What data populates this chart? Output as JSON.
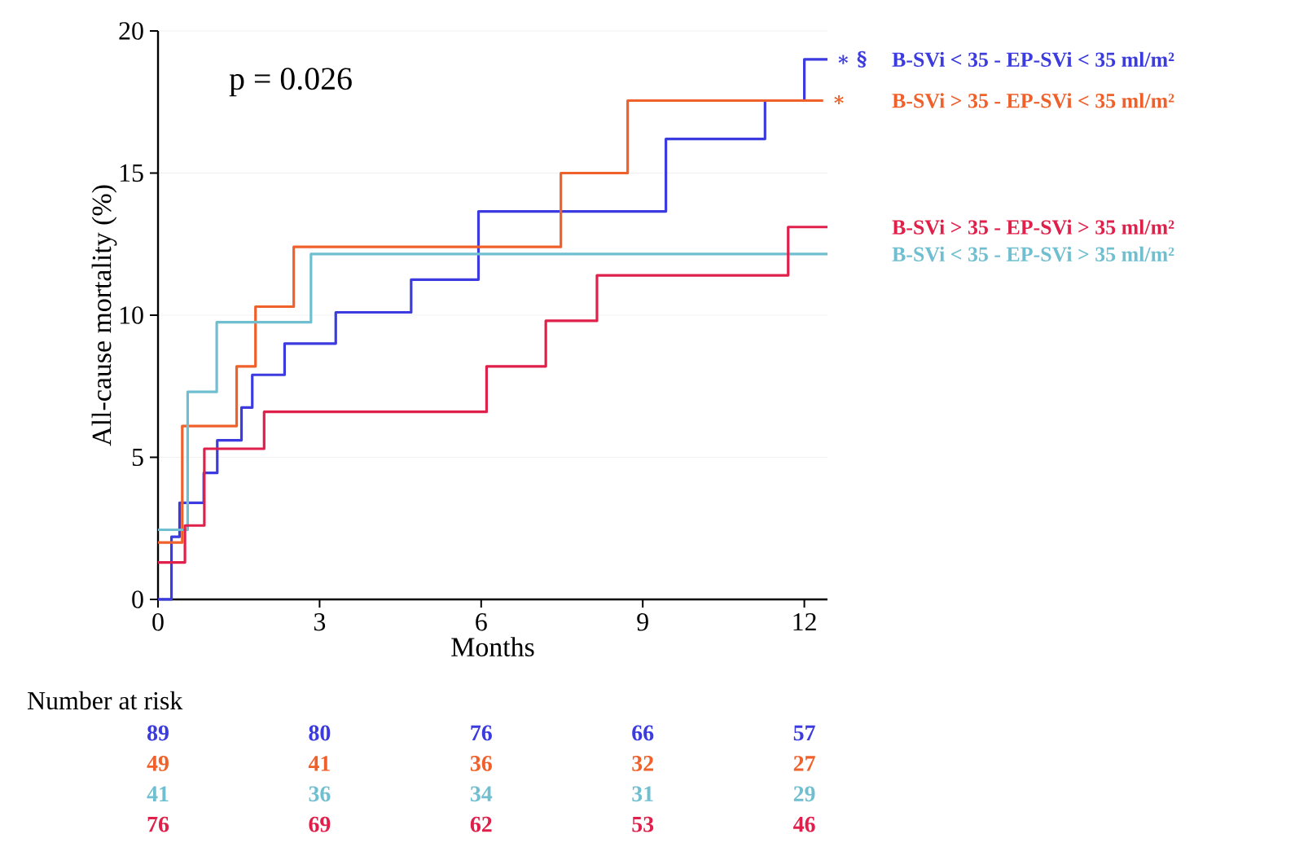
{
  "chart_data": {
    "type": "step",
    "xlabel": "Months",
    "ylabel": "All-cause mortality (%)",
    "xlim": [
      0,
      12.43
    ],
    "ylim": [
      0,
      20
    ],
    "xticks": [
      0,
      3,
      6,
      9,
      12
    ],
    "yticks": [
      0,
      5,
      10,
      15,
      20
    ],
    "grid": "y",
    "series": [
      {
        "name": "B-SVi < 35 - EP-SVi < 35 ml/m²",
        "color": "#3b3be0",
        "x": [
          0,
          0.25,
          0.4,
          0.85,
          1.1,
          1.55,
          1.75,
          2.35,
          3.3,
          4.7,
          5.95,
          9.43,
          11.27,
          12.0,
          12.43
        ],
        "values": [
          0,
          2.2,
          3.4,
          4.45,
          5.6,
          6.75,
          7.9,
          9.0,
          10.1,
          11.25,
          13.65,
          16.2,
          17.55,
          19.0,
          19.0
        ]
      },
      {
        "name": "B-SVi > 35 - EP-SVi < 35 ml/m²",
        "color": "#f0602a",
        "x": [
          0,
          0.45,
          1.46,
          1.81,
          2.52,
          7.48,
          8.72,
          12.35
        ],
        "values": [
          2.0,
          6.1,
          8.2,
          10.3,
          12.4,
          15.0,
          17.55,
          17.55
        ]
      },
      {
        "name": "B-SVi < 35 - EP-SVi > 35 ml/m²",
        "color": "#6fbfd0",
        "x": [
          0,
          0.55,
          1.09,
          2.84,
          12.43
        ],
        "values": [
          2.45,
          7.3,
          9.75,
          12.15,
          12.15
        ]
      },
      {
        "name": "B-SVi > 35 - EP-SVi > 35 ml/m²",
        "color": "#e0204a",
        "x": [
          0,
          0.5,
          0.86,
          1.97,
          6.1,
          7.2,
          8.15,
          11.7,
          12.43
        ],
        "values": [
          1.3,
          2.6,
          5.3,
          6.6,
          8.2,
          9.8,
          11.4,
          13.1,
          13.1
        ]
      }
    ],
    "annotations": [
      "p = 0.026",
      {
        "text": "∗ §",
        "x": 12.43,
        "y": 19.0
      },
      {
        "text": "∗",
        "x": 12.35,
        "y": 17.55
      },
      "Number at risk",
      "89",
      "80",
      "76",
      "66",
      "57",
      "49",
      "41",
      "36",
      "32",
      "27",
      "41",
      "36",
      "34",
      "31",
      "29",
      "76",
      "69",
      "62",
      "53",
      "46"
    ]
  }
}
